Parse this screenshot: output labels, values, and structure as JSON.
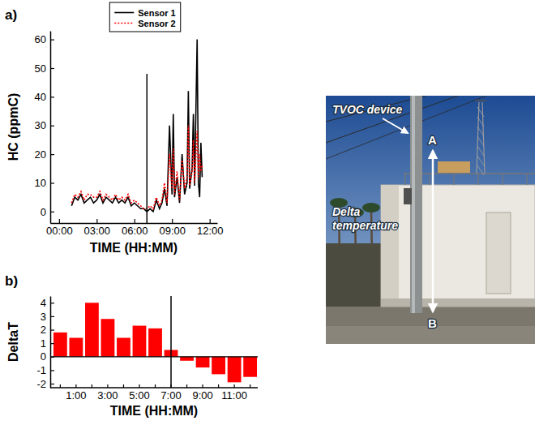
{
  "chart_data": [
    {
      "type": "line",
      "title": "a)",
      "xlabel": "TIME (HH:MM)",
      "ylabel": "HC (ppmC)",
      "x": [
        1,
        1.25,
        1.5,
        1.75,
        2,
        2.25,
        2.5,
        2.75,
        3,
        3.25,
        3.5,
        3.75,
        4,
        4.25,
        4.5,
        4.75,
        5,
        5.25,
        5.5,
        5.75,
        6,
        6.25,
        6.5,
        6.75,
        7,
        7.25,
        7.5,
        7.75,
        8,
        8.2,
        8.4,
        8.6,
        8.8,
        9,
        9.1,
        9.2,
        9.4,
        9.6,
        9.8,
        10,
        10.2,
        10.3,
        10.4,
        10.6,
        10.7,
        10.8,
        11,
        11.1,
        11.2,
        11.3,
        11.4
      ],
      "series": [
        {
          "name": "Sensor 1",
          "color": "#000000",
          "line_style": "solid",
          "values": [
            2,
            5,
            4,
            6,
            3,
            4,
            5,
            3,
            4,
            6,
            3,
            5,
            4,
            3,
            5,
            3,
            4,
            3,
            5,
            2,
            3,
            2,
            1,
            1,
            0,
            1,
            0,
            4,
            1,
            3,
            8,
            2,
            30,
            6,
            34,
            5,
            12,
            3,
            20,
            6,
            10,
            42,
            8,
            15,
            34,
            9,
            60,
            10,
            5,
            24,
            12
          ]
        },
        {
          "name": "Sensor 2",
          "color": "#ff0000",
          "line_style": "dotted",
          "values": [
            3,
            6,
            5,
            7,
            4,
            6,
            6,
            5,
            5,
            7,
            4,
            6,
            5,
            4,
            6,
            4,
            5,
            4,
            6,
            3,
            4,
            3,
            2,
            1,
            1,
            2,
            1,
            5,
            2,
            4,
            10,
            3,
            20,
            8,
            22,
            6,
            14,
            4,
            18,
            8,
            12,
            30,
            9,
            14,
            25,
            10,
            28,
            12,
            20,
            14,
            16
          ]
        }
      ],
      "xlim": [
        -0.7,
        12.6
      ],
      "xticks": [
        {
          "value": 0,
          "label": "00:00"
        },
        {
          "value": 3,
          "label": "03:00"
        },
        {
          "value": 6,
          "label": "06:00"
        },
        {
          "value": 9,
          "label": "09:00"
        },
        {
          "value": 12,
          "label": "12:00"
        }
      ],
      "ylim": [
        -4,
        63
      ],
      "yticks": [
        0,
        10,
        20,
        30,
        40,
        50,
        60
      ],
      "legend": "upper center",
      "vline": {
        "x": 7,
        "y_top": 48
      }
    },
    {
      "type": "bar",
      "title": "b)",
      "xlabel": "TIME (HH:MM)",
      "ylabel": "DeltaT",
      "categories": [
        null,
        "1:00",
        null,
        "3:00",
        null,
        "5:00",
        null,
        "7:00",
        null,
        "9:00",
        null,
        "11:00",
        null
      ],
      "values": [
        1.8,
        1.4,
        4.0,
        2.8,
        1.4,
        2.3,
        2.1,
        0.5,
        -0.3,
        -0.8,
        -1.3,
        -1.9,
        -1.5
      ],
      "color": "#ff0000",
      "ylim": [
        -2.3,
        4.5
      ],
      "yticks": [
        -2,
        -1,
        0,
        1,
        2,
        3,
        4
      ],
      "vline_index": 7
    }
  ],
  "photo": {
    "labels": {
      "device": "TVOC device",
      "delta": "Delta temperature",
      "top": "A",
      "bottom": "B"
    }
  }
}
